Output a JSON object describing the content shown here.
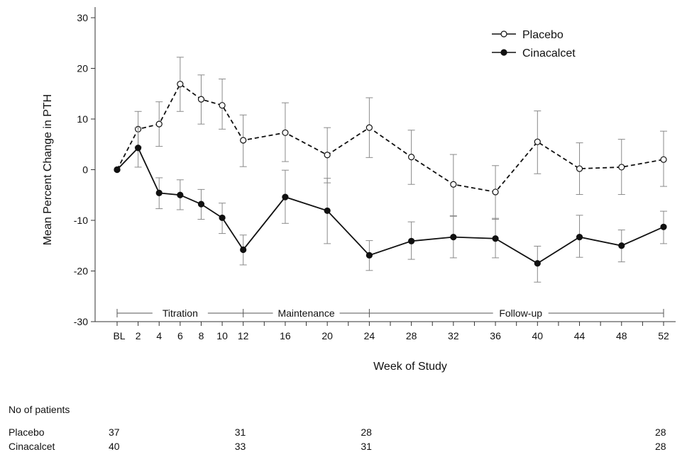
{
  "chart_data": {
    "type": "line",
    "xlabel": "Week of Study",
    "ylabel": "Mean Percent Change in PTH",
    "ylim": [
      -30,
      30
    ],
    "yticks": [
      30,
      20,
      10,
      0,
      -10,
      -20,
      -30
    ],
    "categories": [
      "BL",
      "2",
      "4",
      "6",
      "8",
      "10",
      "12",
      "16",
      "20",
      "24",
      "28",
      "32",
      "36",
      "40",
      "44",
      "48",
      "52"
    ],
    "x": [
      0,
      2,
      4,
      6,
      8,
      10,
      12,
      16,
      20,
      24,
      28,
      32,
      36,
      40,
      44,
      48,
      52
    ],
    "series": [
      {
        "name": "Placebo",
        "marker": "open-circle",
        "line": "dashed",
        "values": [
          0,
          8.0,
          9.0,
          16.9,
          13.9,
          12.7,
          5.8,
          7.3,
          2.9,
          8.3,
          2.5,
          -2.9,
          -4.4,
          5.5,
          0.2,
          0.5,
          2.0
        ],
        "error_low": [
          0,
          4.5,
          4.6,
          11.5,
          9.0,
          8.0,
          0.6,
          1.6,
          -2.6,
          2.4,
          -2.9,
          -9.2,
          -9.8,
          -0.8,
          -4.9,
          -4.9,
          -3.3
        ],
        "error_high": [
          0,
          11.5,
          13.4,
          22.2,
          18.7,
          17.9,
          10.8,
          13.2,
          8.3,
          14.2,
          7.8,
          3.0,
          0.8,
          11.6,
          5.3,
          6.0,
          7.6
        ]
      },
      {
        "name": "Cinacalcet",
        "marker": "filled-circle",
        "line": "solid",
        "values": [
          0,
          4.3,
          -4.6,
          -5.0,
          -6.8,
          -9.5,
          -15.8,
          -5.4,
          -8.1,
          -16.9,
          -14.1,
          -13.3,
          -13.6,
          -18.5,
          -13.3,
          -15.0,
          -11.3
        ],
        "error_low": [
          0,
          0.5,
          -7.7,
          -7.9,
          -9.8,
          -12.6,
          -18.8,
          -10.6,
          -14.6,
          -19.9,
          -17.7,
          -17.4,
          -17.4,
          -22.2,
          -17.3,
          -18.2,
          -14.6
        ],
        "error_high": [
          0,
          8.3,
          -1.6,
          -2.0,
          -3.9,
          -6.6,
          -12.9,
          -0.1,
          -1.7,
          -14.0,
          -10.3,
          -9.1,
          -9.6,
          -15.1,
          -9.0,
          -11.9,
          -8.2
        ]
      }
    ],
    "legend": {
      "position": "top-right",
      "entries": [
        "Placebo",
        "Cinacalcet"
      ]
    },
    "phases": [
      {
        "label": "Titration",
        "start": 0,
        "end": 12
      },
      {
        "label": "Maintenance",
        "start": 12,
        "end": 24
      },
      {
        "label": "Follow-up",
        "start": 24,
        "end": 52
      }
    ],
    "grid": false
  },
  "patients_table": {
    "title": "No of patients",
    "columns_at_week": [
      0,
      12,
      24,
      52
    ],
    "rows": [
      {
        "label": "Placebo",
        "values": [
          "37",
          "31",
          "28",
          "28"
        ]
      },
      {
        "label": "Cinacalcet",
        "values": [
          "40",
          "33",
          "31",
          "28"
        ]
      }
    ]
  }
}
